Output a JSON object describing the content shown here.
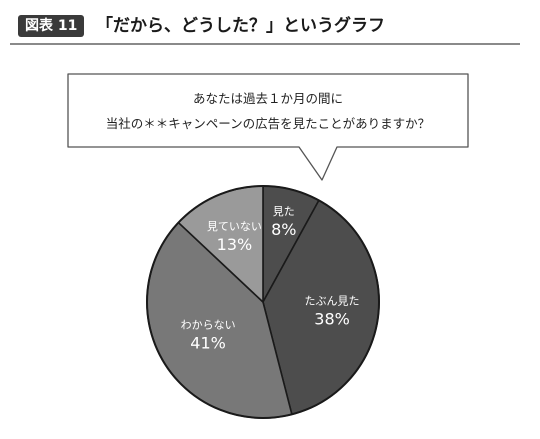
{
  "figure": {
    "badge": "図表 11",
    "title": "「だから、どうした？」というグラフ"
  },
  "question": {
    "line1": "あなたは過去１か月の間に",
    "line2": "当社の＊＊キャンペーンの広告を見たことがありますか？"
  },
  "chart_data": {
    "type": "pie",
    "title": "",
    "slices": [
      {
        "label": "見た",
        "value": 8,
        "value_label": "8%",
        "color": "#4d4d4d"
      },
      {
        "label": "たぶん見た",
        "value": 38,
        "value_label": "38%",
        "color": "#4d4d4d"
      },
      {
        "label": "わからない",
        "value": 41,
        "value_label": "41%",
        "color": "#787878"
      },
      {
        "label": "見ていない",
        "value": 13,
        "value_label": "13%",
        "color": "#9a9a9a"
      }
    ],
    "start": "12 o'clock",
    "direction": "clockwise"
  }
}
